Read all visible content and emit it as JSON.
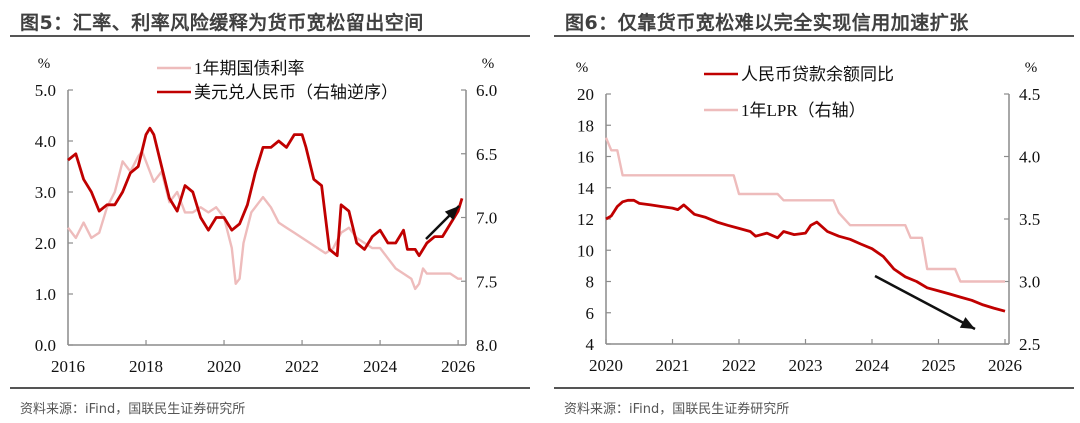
{
  "left_panel": {
    "title": "图5：汇率、利率风险缓释为货币宽松留出空间",
    "source": "资料来源：iFind，国联民生证券研究所"
  },
  "right_panel": {
    "title": "图6：仅靠货币宽松难以完全实现信用加速扩张",
    "source": "资料来源：iFind，国联民生证券研究所"
  },
  "colors": {
    "dark_red": "#c00000",
    "light_pink": "#eebcbc",
    "axis": "#8c8c8c",
    "arrow": "#111111"
  },
  "chart_data": [
    {
      "type": "line",
      "title": "图5：汇率、利率风险缓释为货币宽松留出空间",
      "left_unit": "%",
      "right_unit": "%",
      "x_ticks": [
        "2016",
        "2018",
        "2020",
        "2022",
        "2024",
        "2026"
      ],
      "xlim": [
        2016,
        2026.1
      ],
      "left_ticks": [
        "0.0",
        "1.0",
        "2.0",
        "3.0",
        "4.0",
        "5.0"
      ],
      "left_ylim": [
        0,
        5
      ],
      "right_ticks": [
        "6.0",
        "6.5",
        "7.0",
        "7.5",
        "8.0"
      ],
      "right_ylim_reversed": [
        6.0,
        8.0
      ],
      "annotation": "upward arrow near end (RMB appreciation)",
      "series": [
        {
          "name": "1年期国债利率",
          "axis": "left",
          "color": "#eebcbc",
          "x": [
            2016.0,
            2016.2,
            2016.4,
            2016.6,
            2016.8,
            2017.0,
            2017.2,
            2017.4,
            2017.6,
            2017.8,
            2017.9,
            2018.0,
            2018.2,
            2018.4,
            2018.6,
            2018.8,
            2019.0,
            2019.2,
            2019.4,
            2019.6,
            2019.8,
            2020.0,
            2020.1,
            2020.2,
            2020.3,
            2020.4,
            2020.5,
            2020.7,
            2020.9,
            2021.0,
            2021.2,
            2021.4,
            2021.6,
            2021.8,
            2022.0,
            2022.2,
            2022.4,
            2022.6,
            2022.8,
            2023.0,
            2023.2,
            2023.4,
            2023.6,
            2023.8,
            2024.0,
            2024.2,
            2024.4,
            2024.6,
            2024.8,
            2024.9,
            2025.0,
            2025.1,
            2025.2,
            2025.4,
            2025.6,
            2025.8,
            2026.0,
            2026.1
          ],
          "y": [
            2.3,
            2.1,
            2.4,
            2.1,
            2.2,
            2.7,
            3.0,
            3.6,
            3.4,
            3.7,
            3.8,
            3.6,
            3.2,
            3.4,
            2.8,
            3.0,
            2.6,
            2.6,
            2.7,
            2.6,
            2.7,
            2.5,
            2.2,
            1.9,
            1.2,
            1.3,
            2.0,
            2.6,
            2.8,
            2.9,
            2.7,
            2.4,
            2.3,
            2.2,
            2.1,
            2.0,
            1.9,
            1.8,
            1.9,
            2.2,
            2.3,
            2.1,
            2.0,
            1.9,
            1.9,
            1.7,
            1.5,
            1.4,
            1.3,
            1.1,
            1.2,
            1.5,
            1.4,
            1.4,
            1.4,
            1.4,
            1.3,
            1.3
          ]
        },
        {
          "name": "美元兑人民币（右轴逆序）",
          "axis": "right",
          "color": "#c00000",
          "x": [
            2016.0,
            2016.2,
            2016.4,
            2016.6,
            2016.8,
            2017.0,
            2017.2,
            2017.4,
            2017.6,
            2017.8,
            2018.0,
            2018.1,
            2018.2,
            2018.4,
            2018.6,
            2018.8,
            2019.0,
            2019.2,
            2019.4,
            2019.6,
            2019.8,
            2020.0,
            2020.2,
            2020.4,
            2020.6,
            2020.8,
            2021.0,
            2021.2,
            2021.4,
            2021.6,
            2021.8,
            2022.0,
            2022.1,
            2022.3,
            2022.5,
            2022.7,
            2022.9,
            2023.0,
            2023.2,
            2023.4,
            2023.6,
            2023.8,
            2024.0,
            2024.2,
            2024.4,
            2024.6,
            2024.7,
            2024.9,
            2025.0,
            2025.2,
            2025.4,
            2025.6,
            2025.8,
            2026.0,
            2026.1
          ],
          "y": [
            6.55,
            6.5,
            6.7,
            6.8,
            6.95,
            6.9,
            6.9,
            6.8,
            6.65,
            6.6,
            6.35,
            6.3,
            6.35,
            6.6,
            6.85,
            6.95,
            6.75,
            6.8,
            7.0,
            7.1,
            7.0,
            7.0,
            7.1,
            7.05,
            6.9,
            6.65,
            6.45,
            6.45,
            6.4,
            6.45,
            6.35,
            6.35,
            6.45,
            6.7,
            6.75,
            7.25,
            7.3,
            6.9,
            6.95,
            7.2,
            7.25,
            7.15,
            7.1,
            7.2,
            7.2,
            7.1,
            7.25,
            7.25,
            7.3,
            7.2,
            7.15,
            7.15,
            7.05,
            6.95,
            6.85
          ]
        }
      ]
    },
    {
      "type": "line",
      "title": "图6：仅靠货币宽松难以完全实现信用加速扩张",
      "left_unit": "%",
      "right_unit": "%",
      "x_ticks": [
        "2020",
        "2021",
        "2022",
        "2023",
        "2024",
        "2025",
        "2026"
      ],
      "xlim": [
        2020,
        2026
      ],
      "left_ticks": [
        "4",
        "6",
        "8",
        "10",
        "12",
        "14",
        "16",
        "18",
        "20"
      ],
      "left_ylim": [
        4,
        20
      ],
      "right_ticks": [
        "2.5",
        "3.0",
        "3.5",
        "4.0",
        "4.5"
      ],
      "right_ylim": [
        2.5,
        4.5
      ],
      "annotation": "downward arrow (loan growth slowing)",
      "series": [
        {
          "name": "人民币贷款余额同比",
          "axis": "left",
          "color": "#c00000",
          "x": [
            2020.0,
            2020.08,
            2020.17,
            2020.25,
            2020.33,
            2020.42,
            2020.5,
            2020.67,
            2020.83,
            2021.0,
            2021.08,
            2021.17,
            2021.33,
            2021.5,
            2021.67,
            2021.83,
            2022.0,
            2022.17,
            2022.25,
            2022.42,
            2022.58,
            2022.67,
            2022.83,
            2023.0,
            2023.08,
            2023.17,
            2023.33,
            2023.5,
            2023.67,
            2023.83,
            2024.0,
            2024.17,
            2024.33,
            2024.5,
            2024.67,
            2024.83,
            2025.0,
            2025.17,
            2025.33,
            2025.5,
            2025.67,
            2025.83,
            2026.0
          ],
          "y": [
            12.0,
            12.2,
            12.8,
            13.1,
            13.2,
            13.2,
            13.0,
            12.9,
            12.8,
            12.7,
            12.6,
            12.9,
            12.3,
            12.1,
            11.8,
            11.6,
            11.4,
            11.2,
            10.9,
            11.1,
            10.8,
            11.2,
            11.0,
            11.1,
            11.6,
            11.8,
            11.2,
            10.9,
            10.7,
            10.4,
            10.1,
            9.6,
            8.8,
            8.3,
            8.0,
            7.6,
            7.4,
            7.2,
            7.0,
            6.8,
            6.5,
            6.3,
            6.1
          ]
        },
        {
          "name": "1年LPR（右轴）",
          "axis": "right",
          "color": "#eebcbc",
          "x": [
            2020.0,
            2020.08,
            2020.17,
            2020.25,
            2020.33,
            2020.67,
            2021.0,
            2021.5,
            2021.92,
            2022.0,
            2022.08,
            2022.58,
            2022.67,
            2023.0,
            2023.42,
            2023.5,
            2023.67,
            2024.0,
            2024.5,
            2024.58,
            2024.75,
            2024.83,
            2025.25,
            2025.33,
            2025.5,
            2026.0
          ],
          "y": [
            4.15,
            4.05,
            4.05,
            3.85,
            3.85,
            3.85,
            3.85,
            3.85,
            3.85,
            3.7,
            3.7,
            3.7,
            3.65,
            3.65,
            3.65,
            3.55,
            3.45,
            3.45,
            3.45,
            3.35,
            3.35,
            3.1,
            3.1,
            3.0,
            3.0,
            3.0
          ]
        }
      ]
    }
  ]
}
